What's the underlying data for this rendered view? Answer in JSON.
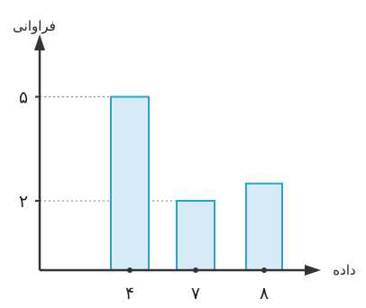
{
  "chart_data": {
    "type": "bar",
    "title": "",
    "xlabel": "داده",
    "ylabel": "فراوانی",
    "categories": [
      "۴",
      "۷",
      "۸"
    ],
    "x": [
      4,
      7,
      8
    ],
    "values": [
      5,
      2,
      2.5
    ],
    "yticks": [
      {
        "value": 2,
        "label": "۲"
      },
      {
        "value": 5,
        "label": "۵"
      }
    ],
    "ylim": [
      0,
      6.2
    ],
    "grid": false,
    "colors": {
      "bar_fill": "#d6ecf8",
      "bar_stroke": "#29a3dc",
      "axis": "#333333",
      "guide": "#7a7a7a"
    }
  }
}
